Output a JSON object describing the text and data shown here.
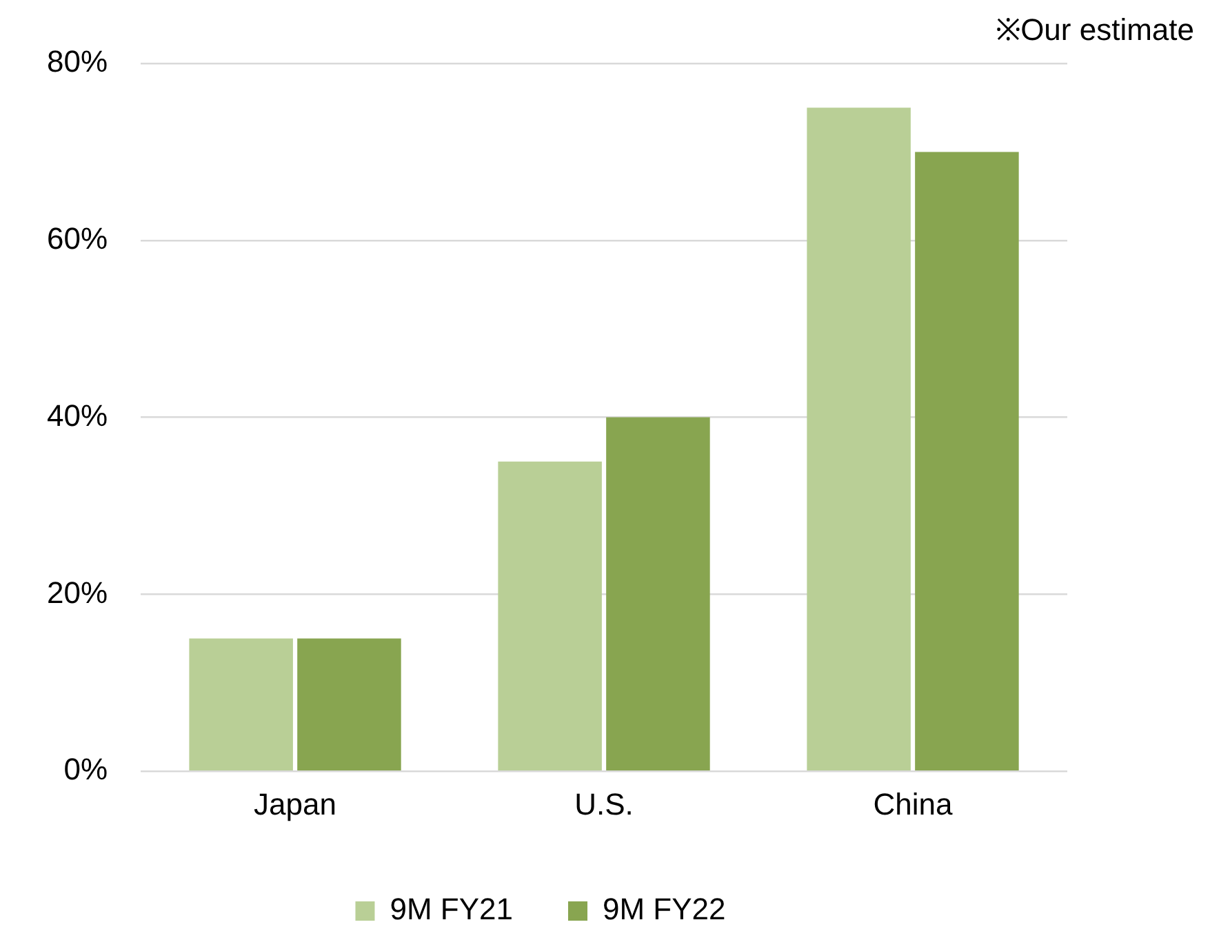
{
  "chart_data": {
    "type": "bar",
    "categories": [
      "Japan",
      "U.S.",
      "China"
    ],
    "series": [
      {
        "name": "9M FY21",
        "color": "#b9cf96",
        "values": [
          15,
          35,
          75
        ]
      },
      {
        "name": "9M FY22",
        "color": "#88a550",
        "values": [
          15,
          40,
          70
        ]
      }
    ],
    "ylim": [
      0,
      80
    ],
    "yticks": [
      {
        "value": 0,
        "label": "0%"
      },
      {
        "value": 20,
        "label": "20%"
      },
      {
        "value": 40,
        "label": "40%"
      },
      {
        "value": 60,
        "label": "60%"
      },
      {
        "value": 80,
        "label": "80%"
      }
    ],
    "grid": "y",
    "legend": "bottom",
    "annotations": [
      "※Our estimate"
    ]
  }
}
